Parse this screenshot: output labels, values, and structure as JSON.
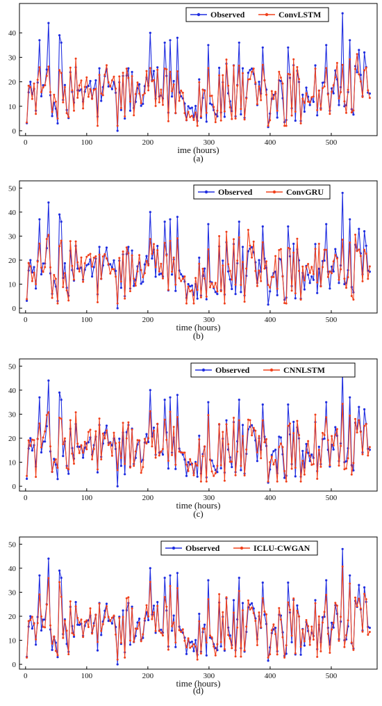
{
  "colors": {
    "observed": "#1f2de0",
    "predicted": "#f0401c",
    "axis": "#000000"
  },
  "chart_data": [
    {
      "type": "line",
      "caption": "(a)",
      "xlabel": "ime (hours)",
      "xlim": [
        -10,
        575
      ],
      "ylim": [
        -2,
        52
      ],
      "xticks": [
        0,
        100,
        200,
        300,
        400,
        500
      ],
      "yticks": [
        0,
        10,
        20,
        30,
        40
      ],
      "legend_position": "top-right",
      "series": [
        {
          "name": "Observed",
          "role": "observed",
          "marker": "circle"
        },
        {
          "name": "ConvLSTM",
          "role": "predicted",
          "marker": "circle"
        }
      ]
    },
    {
      "type": "line",
      "caption": "(b)",
      "xlabel": "time (hours)",
      "xlim": [
        -10,
        575
      ],
      "ylim": [
        -2,
        53
      ],
      "xticks": [
        0,
        100,
        200,
        300,
        400,
        500
      ],
      "yticks": [
        0,
        10,
        20,
        30,
        40,
        50
      ],
      "legend_position": "top-right",
      "series": [
        {
          "name": "Observed",
          "role": "observed",
          "marker": "circle"
        },
        {
          "name": "ConvGRU",
          "role": "predicted",
          "marker": "circle"
        }
      ]
    },
    {
      "type": "line",
      "caption": "(c)",
      "xlabel": "time (hours)",
      "xlim": [
        -10,
        575
      ],
      "ylim": [
        -2,
        53
      ],
      "xticks": [
        0,
        100,
        200,
        300,
        400,
        500
      ],
      "yticks": [
        0,
        10,
        20,
        30,
        40,
        50
      ],
      "legend_position": "top-right",
      "series": [
        {
          "name": "Observed",
          "role": "observed",
          "marker": "circle"
        },
        {
          "name": "CNNLSTM",
          "role": "predicted",
          "marker": "circle"
        }
      ]
    },
    {
      "type": "line",
      "caption": "(d)",
      "xlabel": "time (hours)",
      "xlim": [
        -10,
        575
      ],
      "ylim": [
        -2,
        53
      ],
      "xticks": [
        0,
        100,
        200,
        300,
        400,
        500
      ],
      "yticks": [
        0,
        10,
        20,
        30,
        40,
        50
      ],
      "legend_position": "top-right",
      "series": [
        {
          "name": "Observed",
          "role": "observed",
          "marker": "circle"
        },
        {
          "name": "ICLU-CWGAN",
          "role": "predicted",
          "marker": "circle"
        }
      ]
    }
  ]
}
